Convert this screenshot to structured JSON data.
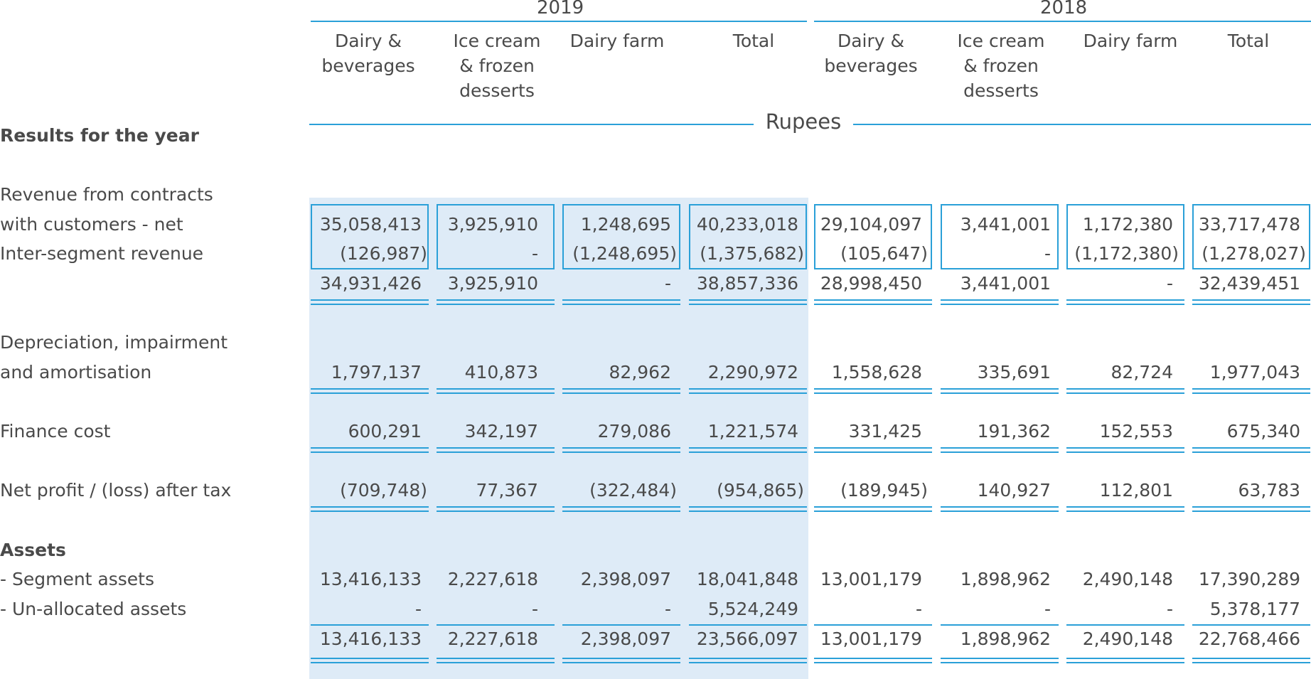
{
  "years": [
    "2019",
    "2018"
  ],
  "columns": [
    "Dairy &\nbeverages",
    "Ice cream\n& frozen\ndesserts",
    "Dairy farm",
    "Total",
    "Dairy &\nbeverages",
    "Ice cream\n& frozen\ndesserts",
    "Dairy farm",
    "Total"
  ],
  "currency_label": "Rupees",
  "labels": {
    "results": "Results for the year",
    "revenue_1": "Revenue from contracts",
    "revenue_2": "  with customers - net",
    "inter_segment": "Inter-segment revenue",
    "dep_1": "Depreciation, impairment",
    "dep_2": "and amortisation",
    "finance": "Finance cost",
    "net_profit": "Net profit / (loss) after tax",
    "assets": "Assets",
    "segment_assets": "- Segment assets",
    "unallocated": "- Un-allocated assets"
  },
  "rows": {
    "revenue": [
      "35,058,413",
      "3,925,910",
      "1,248,695",
      "40,233,018",
      "29,104,097",
      "3,441,001",
      "1,172,380",
      "33,717,478"
    ],
    "inter_segment": [
      "(126,987)",
      "-",
      "(1,248,695)",
      "(1,375,682)",
      "(105,647)",
      "-",
      "(1,172,380)",
      "(1,278,027)"
    ],
    "net_revenue": [
      "34,931,426",
      "3,925,910",
      "-",
      "38,857,336",
      "28,998,450",
      "3,441,001",
      "-",
      "32,439,451"
    ],
    "depreciation": [
      "1,797,137",
      "410,873",
      "82,962",
      "2,290,972",
      "1,558,628",
      "335,691",
      "82,724",
      "1,977,043"
    ],
    "finance_cost": [
      "600,291",
      "342,197",
      "279,086",
      "1,221,574",
      "331,425",
      "191,362",
      "152,553",
      "675,340"
    ],
    "net_profit": [
      "(709,748)",
      "77,367",
      "(322,484)",
      "(954,865)",
      "(189,945)",
      "140,927",
      "112,801",
      "63,783"
    ],
    "segment_assets": [
      "13,416,133",
      "2,227,618",
      "2,398,097",
      "18,041,848",
      "13,001,179",
      "1,898,962",
      "2,490,148",
      "17,390,289"
    ],
    "unallocated_assets": [
      "-",
      "-",
      "-",
      "5,524,249",
      "-",
      "-",
      "-",
      "5,378,177"
    ],
    "total_assets": [
      "13,416,133",
      "2,227,618",
      "2,398,097",
      "23,566,097",
      "13,001,179",
      "1,898,962",
      "2,490,148",
      "22,768,466"
    ]
  },
  "colors": {
    "accent": "#2aa0d8",
    "shade": "#deebf7",
    "text": "#4a4a4a"
  }
}
